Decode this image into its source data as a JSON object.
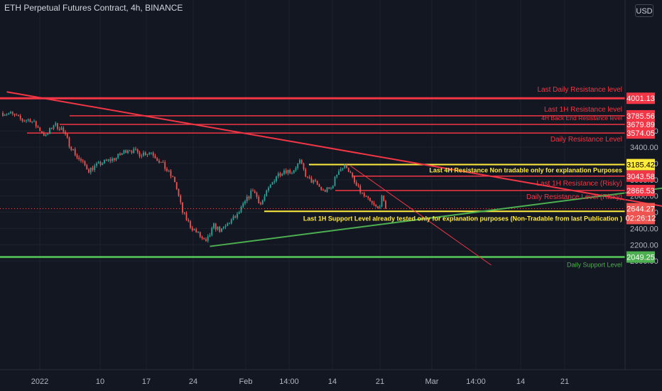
{
  "header": {
    "title": "ETH Perpetual Futures Contract, 4h, BINANCE",
    "currency_button": "USD"
  },
  "colors": {
    "background": "#131722",
    "up": "#26a69a",
    "down": "#ef5350",
    "resistance": "#f23645",
    "support": "#4caf50",
    "highlight": "#ffeb3b",
    "axis_text": "#b2b5be"
  },
  "chart_data": {
    "type": "candlestick",
    "symbol": "ETH Perpetual Futures Contract",
    "interval": "4h",
    "exchange": "BINANCE",
    "ylim": [
      1900,
      4100
    ],
    "y_ticks": [
      2000,
      2200,
      2400,
      2600,
      2800,
      3000,
      3200,
      3400,
      3600
    ],
    "y_tick_labels": [
      "2000.00",
      "2200.00",
      "2400.00",
      "2600.00",
      "2800.00",
      "3000.00",
      "3200.00",
      "3400.00",
      "3600.00"
    ],
    "x_tick_labels": [
      "2022",
      "10",
      "17",
      "24",
      "Feb",
      "14:00",
      "14",
      "21",
      "Mar",
      "14:00",
      "14",
      "21"
    ],
    "price_anchors": [
      {
        "t": 0,
        "p": 3820
      },
      {
        "t": 4,
        "p": 3810
      },
      {
        "t": 10,
        "p": 3730
      },
      {
        "t": 14,
        "p": 3740
      },
      {
        "t": 18,
        "p": 3640
      },
      {
        "t": 22,
        "p": 3530
      },
      {
        "t": 26,
        "p": 3680
      },
      {
        "t": 30,
        "p": 3630
      },
      {
        "t": 34,
        "p": 3440
      },
      {
        "t": 38,
        "p": 3280
      },
      {
        "t": 44,
        "p": 3120
      },
      {
        "t": 50,
        "p": 3200
      },
      {
        "t": 58,
        "p": 3270
      },
      {
        "t": 64,
        "p": 3380
      },
      {
        "t": 70,
        "p": 3320
      },
      {
        "t": 76,
        "p": 3340
      },
      {
        "t": 82,
        "p": 3180
      },
      {
        "t": 88,
        "p": 2980
      },
      {
        "t": 92,
        "p": 2600
      },
      {
        "t": 96,
        "p": 2430
      },
      {
        "t": 100,
        "p": 2330
      },
      {
        "t": 104,
        "p": 2220
      },
      {
        "t": 108,
        "p": 2430
      },
      {
        "t": 112,
        "p": 2370
      },
      {
        "t": 116,
        "p": 2480
      },
      {
        "t": 120,
        "p": 2560
      },
      {
        "t": 124,
        "p": 2720
      },
      {
        "t": 128,
        "p": 2880
      },
      {
        "t": 132,
        "p": 2700
      },
      {
        "t": 136,
        "p": 2880
      },
      {
        "t": 140,
        "p": 3050
      },
      {
        "t": 144,
        "p": 3120
      },
      {
        "t": 148,
        "p": 3100
      },
      {
        "t": 152,
        "p": 3220
      },
      {
        "t": 156,
        "p": 3010
      },
      {
        "t": 160,
        "p": 2960
      },
      {
        "t": 164,
        "p": 2860
      },
      {
        "t": 168,
        "p": 2890
      },
      {
        "t": 172,
        "p": 3130
      },
      {
        "t": 176,
        "p": 3170
      },
      {
        "t": 180,
        "p": 2960
      },
      {
        "t": 184,
        "p": 2820
      },
      {
        "t": 188,
        "p": 2720
      },
      {
        "t": 192,
        "p": 2640
      },
      {
        "t": 194,
        "p": 2770
      },
      {
        "t": 196,
        "p": 2644
      }
    ],
    "levels": [
      {
        "name": "Last Daily Resistance level",
        "value": 4001.13,
        "label": "4001.13",
        "color": "#f23645"
      },
      {
        "name": "Last 1H Resistance level",
        "value": 3785.56,
        "label": "3785.56",
        "color": "#f23645"
      },
      {
        "name": "4H Back End Resistance level",
        "value": 3679.89,
        "label": "3679.89",
        "color": "#f23645"
      },
      {
        "name": "Daily Resistance Level",
        "value": 3574.05,
        "label": "3574.05",
        "color": "#f23645"
      },
      {
        "name": "Last 4H Resistance Non tradable only for explanation Purposes",
        "value": 3185.42,
        "label": "3185.42",
        "color": "#ffeb3b"
      },
      {
        "name": "Last 1H Resistance (Risky)",
        "value": 3043.58,
        "label": "3043.58",
        "color": "#f23645"
      },
      {
        "name": "Daily Resistance Level (Risky)",
        "value": 2866.53,
        "label": "2866.53",
        "color": "#f23645"
      },
      {
        "name": "Last 1H Support Level already tested only for explanation purposes (Non-Tradable from last Publication )",
        "value": 2610.89,
        "label": "2610.89",
        "color": "#ffeb3b"
      },
      {
        "name": "Daily Support Level",
        "value": 2049.25,
        "label": "2049.25",
        "color": "#4caf50"
      }
    ],
    "current_price": {
      "value": 2644.27,
      "label": "2644.27",
      "countdown": "02:26:12"
    },
    "trendlines": [
      {
        "name": "major-downtrend",
        "color": "#f23645",
        "from": {
          "t": 2,
          "p": 4080
        },
        "to": {
          "t": 420,
          "p": 2330
        }
      },
      {
        "name": "uptrend-support",
        "color": "#4caf50",
        "from": {
          "t": 106,
          "p": 2180
        },
        "to": {
          "t": 420,
          "p": 3150
        }
      },
      {
        "name": "steep-downtrend",
        "color": "#f23645",
        "from": {
          "t": 178,
          "p": 3170
        },
        "to": {
          "t": 250,
          "p": 1950
        }
      }
    ]
  }
}
